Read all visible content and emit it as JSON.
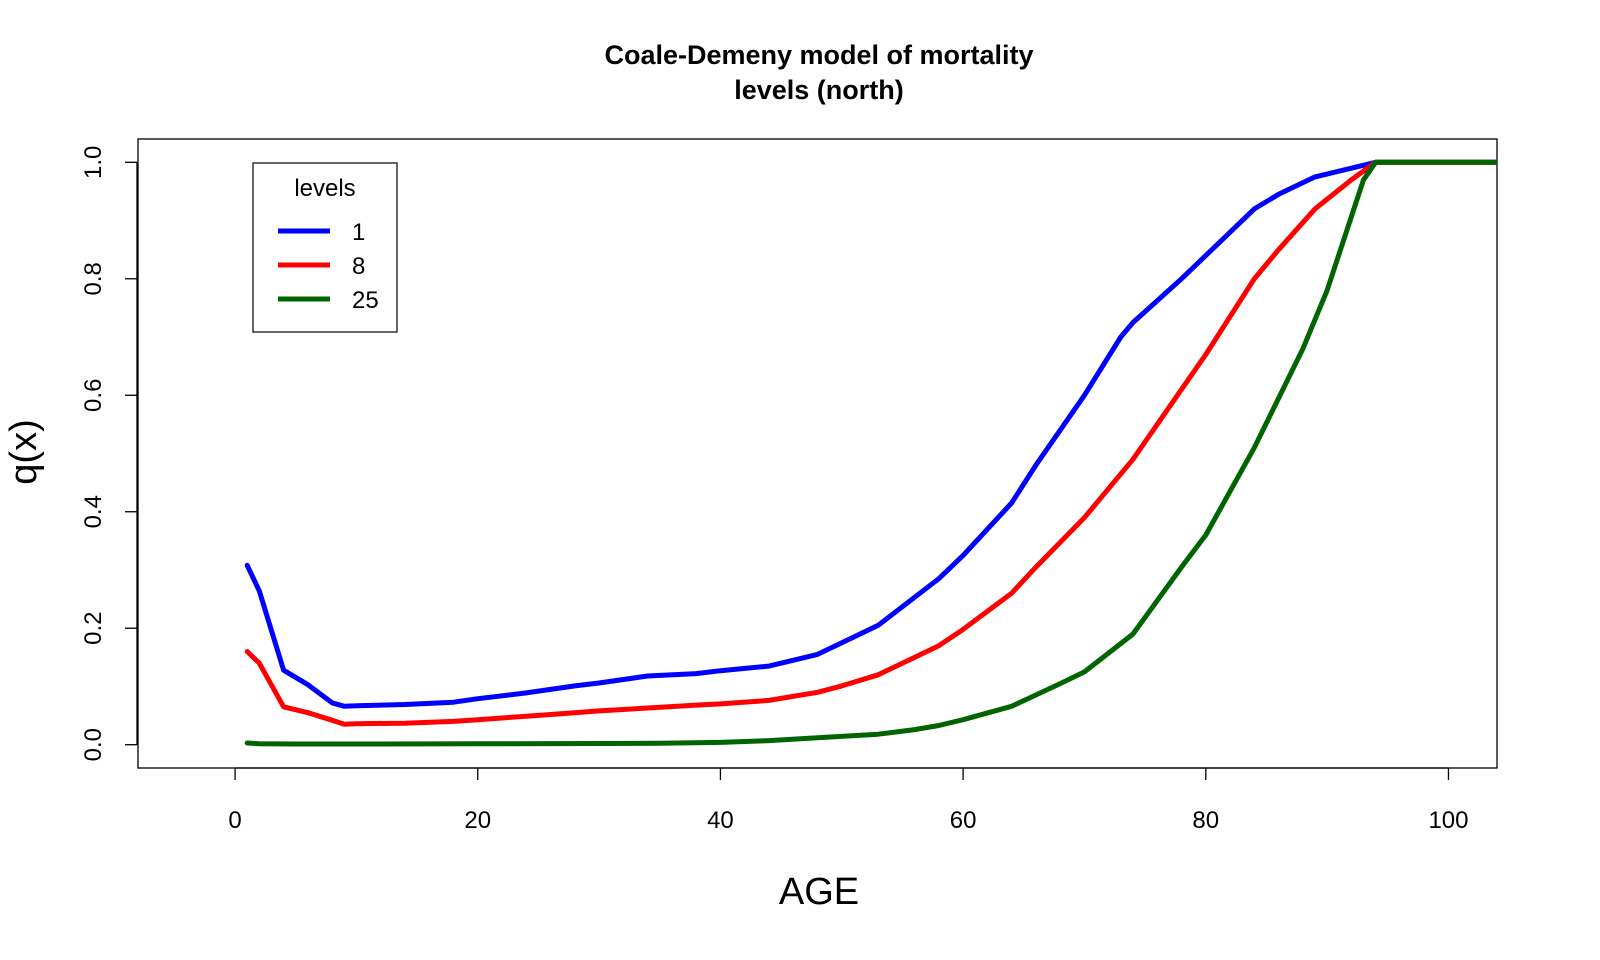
{
  "chart_data": {
    "type": "line",
    "title": [
      "Coale-Demeny model of mortality",
      "levels (north)"
    ],
    "xlabel": "AGE",
    "ylabel": "q(x)",
    "xlim": [
      -8,
      104
    ],
    "ylim": [
      -0.04,
      1.04
    ],
    "xticks": [
      0,
      20,
      40,
      60,
      80,
      100
    ],
    "yticks": [
      0.0,
      0.2,
      0.4,
      0.6,
      0.8,
      1.0
    ],
    "xtick_labels": [
      "0",
      "20",
      "40",
      "60",
      "80",
      "100"
    ],
    "ytick_labels": [
      "0.0",
      "0.2",
      "0.4",
      "0.6",
      "0.8",
      "1.0"
    ],
    "legend": {
      "title": "levels",
      "position": "top-left"
    },
    "series": [
      {
        "name": "1",
        "color": "#0000ff",
        "x": [
          1,
          2,
          4,
          6,
          8,
          9,
          10,
          14,
          18,
          20,
          24,
          28,
          30,
          34,
          38,
          40,
          44,
          48,
          50,
          53,
          58,
          60,
          64,
          66,
          70,
          73,
          74,
          78,
          80,
          84,
          86,
          89,
          94,
          104
        ],
        "y": [
          0.308,
          0.264,
          0.128,
          0.103,
          0.072,
          0.066,
          0.067,
          0.069,
          0.073,
          0.079,
          0.089,
          0.101,
          0.106,
          0.118,
          0.122,
          0.127,
          0.135,
          0.155,
          0.175,
          0.205,
          0.285,
          0.325,
          0.415,
          0.48,
          0.6,
          0.7,
          0.725,
          0.8,
          0.84,
          0.92,
          0.945,
          0.975,
          1.0,
          1.0
        ]
      },
      {
        "name": "8",
        "color": "#ff0000",
        "x": [
          1,
          2,
          4,
          6,
          8,
          9,
          10,
          14,
          18,
          20,
          24,
          28,
          30,
          34,
          38,
          40,
          44,
          48,
          50,
          53,
          58,
          60,
          64,
          66,
          70,
          74,
          78,
          80,
          84,
          86,
          89,
          92,
          94,
          104
        ],
        "y": [
          0.16,
          0.14,
          0.065,
          0.055,
          0.042,
          0.035,
          0.036,
          0.037,
          0.04,
          0.043,
          0.049,
          0.055,
          0.058,
          0.063,
          0.068,
          0.07,
          0.076,
          0.09,
          0.101,
          0.12,
          0.17,
          0.198,
          0.26,
          0.305,
          0.39,
          0.49,
          0.61,
          0.67,
          0.8,
          0.85,
          0.92,
          0.97,
          1.0,
          1.0
        ]
      },
      {
        "name": "25",
        "color": "#006400",
        "x": [
          1,
          2,
          5,
          10,
          20,
          30,
          35,
          40,
          44,
          48,
          53,
          56,
          58,
          60,
          64,
          68,
          70,
          74,
          78,
          80,
          84,
          88,
          90,
          93,
          94,
          104
        ],
        "y": [
          0.003,
          0.0015,
          0.0012,
          0.0012,
          0.0015,
          0.002,
          0.0025,
          0.004,
          0.007,
          0.012,
          0.018,
          0.026,
          0.033,
          0.043,
          0.066,
          0.105,
          0.125,
          0.19,
          0.305,
          0.36,
          0.51,
          0.68,
          0.78,
          0.97,
          1.0,
          1.0
        ]
      }
    ]
  }
}
